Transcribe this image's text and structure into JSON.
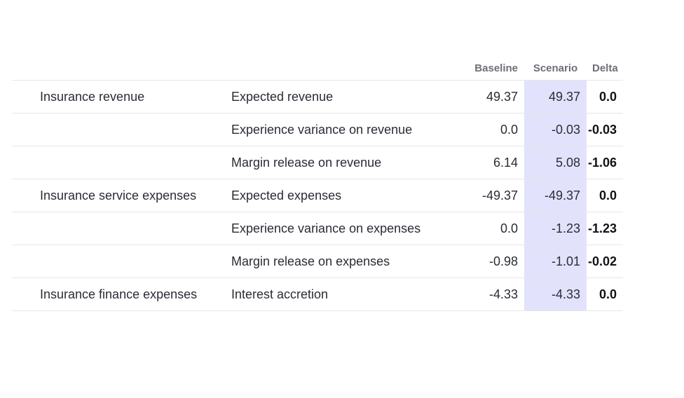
{
  "table": {
    "headers": {
      "baseline": "Baseline",
      "scenario": "Scenario",
      "delta": "Delta"
    },
    "rows": [
      {
        "category": "Insurance revenue",
        "item": "Expected revenue",
        "baseline": "49.37",
        "scenario": "49.37",
        "delta": "0.0"
      },
      {
        "category": "",
        "item": "Experience variance on revenue",
        "baseline": "0.0",
        "scenario": "-0.03",
        "delta": "-0.03"
      },
      {
        "category": "",
        "item": "Margin release on revenue",
        "baseline": "6.14",
        "scenario": "5.08",
        "delta": "-1.06"
      },
      {
        "category": "Insurance service expenses",
        "item": "Expected expenses",
        "baseline": "-49.37",
        "scenario": "-49.37",
        "delta": "0.0"
      },
      {
        "category": "",
        "item": "Experience variance on expenses",
        "baseline": "0.0",
        "scenario": "-1.23",
        "delta": "-1.23"
      },
      {
        "category": "",
        "item": "Margin release on expenses",
        "baseline": "-0.98",
        "scenario": "-1.01",
        "delta": "-0.02"
      },
      {
        "category": "Insurance finance expenses",
        "item": "Interest accretion",
        "baseline": "-4.33",
        "scenario": "-4.33",
        "delta": "0.0"
      }
    ]
  },
  "colors": {
    "scenario_highlight": "#e2e2fc",
    "header_text": "#6e6e78",
    "row_border": "#e6e6ea"
  }
}
